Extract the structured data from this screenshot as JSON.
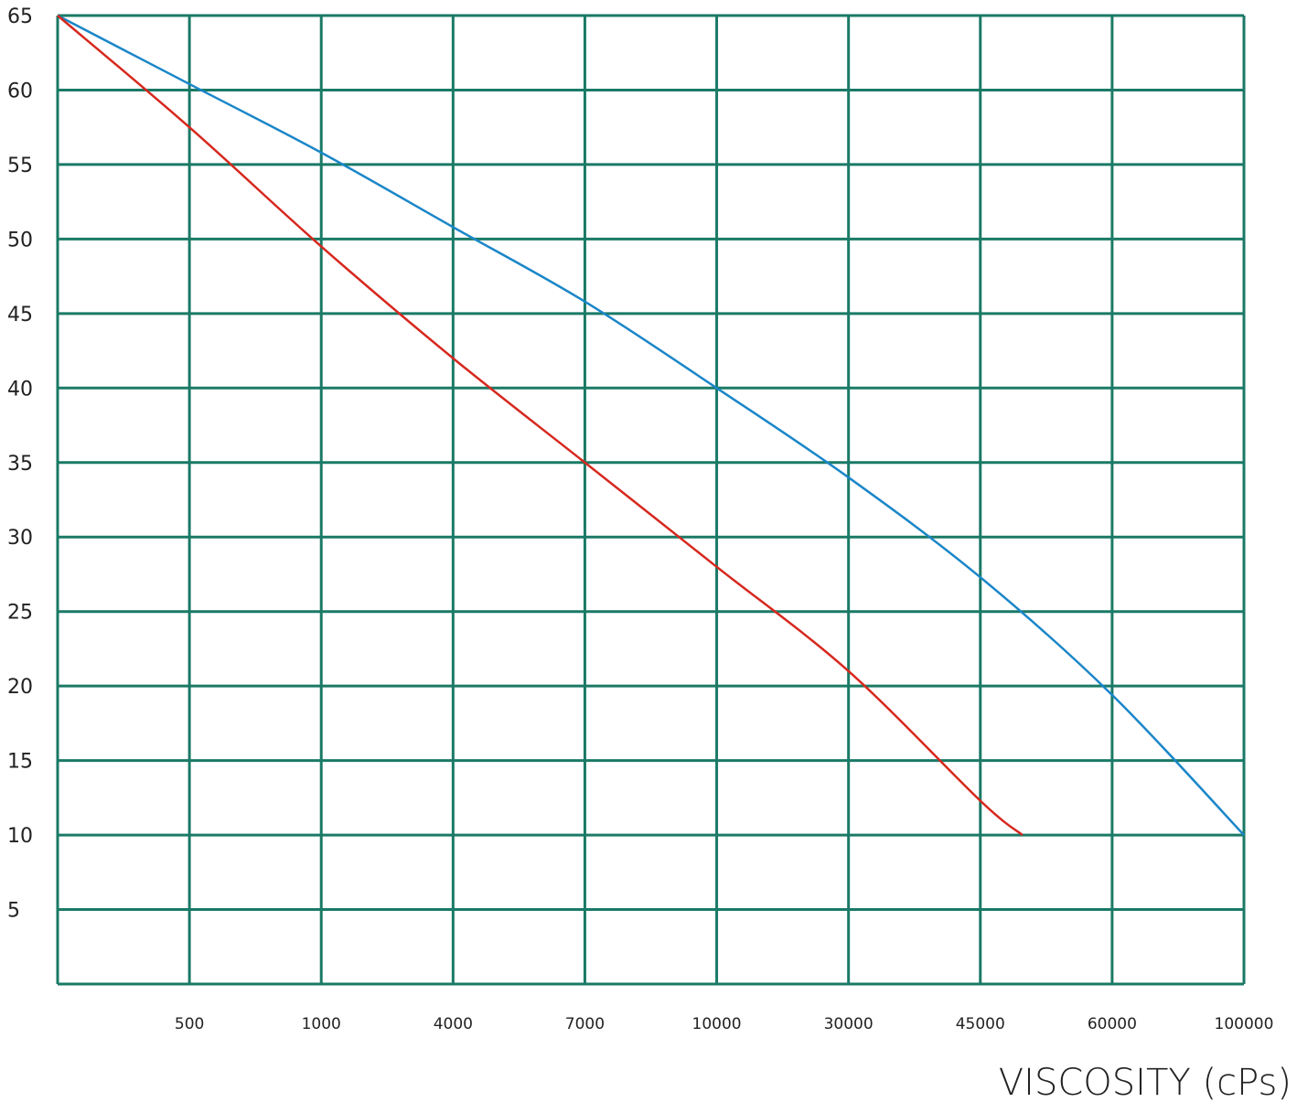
{
  "chart_data": {
    "type": "line",
    "title": "",
    "xlabel": "VISCOSITY (cPs)",
    "ylabel": "",
    "x_categories": [
      "",
      "500",
      "1000",
      "4000",
      "7000",
      "10000",
      "30000",
      "45000",
      "60000",
      "100000"
    ],
    "y_ticks": [
      "5",
      "10",
      "15",
      "20",
      "25",
      "30",
      "35",
      "40",
      "45",
      "50",
      "55",
      "60",
      "65"
    ],
    "ylim": [
      0,
      65
    ],
    "grid": true,
    "legend": "none",
    "colors": {
      "grid": "#1a7a66",
      "series_a": "#1a86c8",
      "series_b": "#d6281e"
    },
    "series": [
      {
        "color": "#1a86c8",
        "x": [
          "",
          "500",
          "1000",
          "4000",
          "7000",
          "10000",
          "30000",
          "45000",
          "60000",
          "100000"
        ],
        "values": [
          65,
          60.4,
          55.8,
          50.8,
          45.8,
          40,
          34,
          27.3,
          19.4,
          10
        ]
      },
      {
        "color": "#d6281e",
        "x": [
          "",
          "500",
          "1000",
          "4000",
          "7000",
          "10000",
          "30000",
          "45000",
          "~52000"
        ],
        "values": [
          65,
          57.5,
          49.5,
          42,
          35,
          28,
          21,
          12.3,
          10
        ]
      }
    ]
  }
}
